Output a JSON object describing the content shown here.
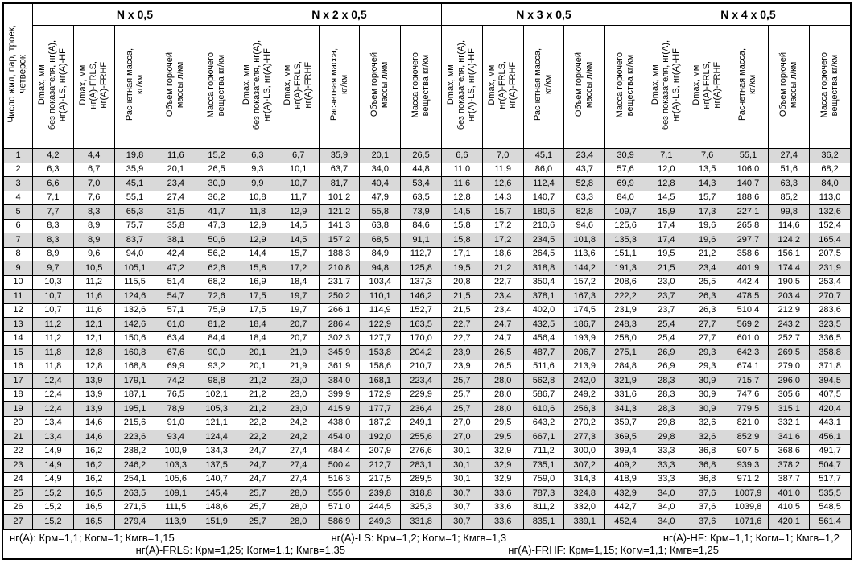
{
  "table": {
    "row_header": "Число жил, пар, троек,\nчетверок",
    "groups": [
      "N x 0,5",
      "N x 2 x 0,5",
      "N x 3 x 0,5",
      "N x 4 x 0,5"
    ],
    "columns": [
      "Dmax, мм\nбез показателя, нг(А),\nнг(А)-LS, нг(А)-HF",
      "Dmax, мм\nнг(А)-FRLS,\nнг(А)-FRHF",
      "Расчетная масса,\nкг/км",
      "Объем горючей\nмассы л/км",
      "Масса горючего\nвещества кг/км"
    ],
    "rows": [
      [
        "1",
        "4,2",
        "4,4",
        "19,8",
        "11,6",
        "15,2",
        "6,3",
        "6,7",
        "35,9",
        "20,1",
        "26,5",
        "6,6",
        "7,0",
        "45,1",
        "23,4",
        "30,9",
        "7,1",
        "7,6",
        "55,1",
        "27,4",
        "36,2"
      ],
      [
        "2",
        "6,3",
        "6,7",
        "35,9",
        "20,1",
        "26,5",
        "9,3",
        "10,1",
        "63,7",
        "34,0",
        "44,8",
        "11,0",
        "11,9",
        "86,0",
        "43,7",
        "57,6",
        "12,0",
        "13,5",
        "106,0",
        "51,6",
        "68,2"
      ],
      [
        "3",
        "6,6",
        "7,0",
        "45,1",
        "23,4",
        "30,9",
        "9,9",
        "10,7",
        "81,7",
        "40,4",
        "53,4",
        "11,6",
        "12,6",
        "112,4",
        "52,8",
        "69,9",
        "12,8",
        "14,3",
        "140,7",
        "63,3",
        "84,0"
      ],
      [
        "4",
        "7,1",
        "7,6",
        "55,1",
        "27,4",
        "36,2",
        "10,8",
        "11,7",
        "101,2",
        "47,9",
        "63,5",
        "12,8",
        "14,3",
        "140,7",
        "63,3",
        "84,0",
        "14,5",
        "15,7",
        "188,6",
        "85,2",
        "113,0"
      ],
      [
        "5",
        "7,7",
        "8,3",
        "65,3",
        "31,5",
        "41,7",
        "11,8",
        "12,9",
        "121,2",
        "55,8",
        "73,9",
        "14,5",
        "15,7",
        "180,6",
        "82,8",
        "109,7",
        "15,9",
        "17,3",
        "227,1",
        "99,8",
        "132,6"
      ],
      [
        "6",
        "8,3",
        "8,9",
        "75,7",
        "35,8",
        "47,3",
        "12,9",
        "14,5",
        "141,3",
        "63,8",
        "84,6",
        "15,8",
        "17,2",
        "210,6",
        "94,6",
        "125,6",
        "17,4",
        "19,6",
        "265,8",
        "114,6",
        "152,4"
      ],
      [
        "7",
        "8,3",
        "8,9",
        "83,7",
        "38,1",
        "50,6",
        "12,9",
        "14,5",
        "157,2",
        "68,5",
        "91,1",
        "15,8",
        "17,2",
        "234,5",
        "101,8",
        "135,3",
        "17,4",
        "19,6",
        "297,7",
        "124,2",
        "165,4"
      ],
      [
        "8",
        "8,9",
        "9,6",
        "94,0",
        "42,4",
        "56,2",
        "14,4",
        "15,7",
        "188,3",
        "84,9",
        "112,7",
        "17,1",
        "18,6",
        "264,5",
        "113,6",
        "151,1",
        "19,5",
        "21,2",
        "358,6",
        "156,1",
        "207,5"
      ],
      [
        "9",
        "9,7",
        "10,5",
        "105,1",
        "47,2",
        "62,6",
        "15,8",
        "17,2",
        "210,8",
        "94,8",
        "125,8",
        "19,5",
        "21,2",
        "318,8",
        "144,2",
        "191,3",
        "21,5",
        "23,4",
        "401,9",
        "174,4",
        "231,9"
      ],
      [
        "10",
        "10,3",
        "11,2",
        "115,5",
        "51,4",
        "68,2",
        "16,9",
        "18,4",
        "231,7",
        "103,4",
        "137,3",
        "20,8",
        "22,7",
        "350,4",
        "157,2",
        "208,6",
        "23,0",
        "25,5",
        "442,4",
        "190,5",
        "253,4"
      ],
      [
        "11",
        "10,7",
        "11,6",
        "124,6",
        "54,7",
        "72,6",
        "17,5",
        "19,7",
        "250,2",
        "110,1",
        "146,2",
        "21,5",
        "23,4",
        "378,1",
        "167,3",
        "222,2",
        "23,7",
        "26,3",
        "478,5",
        "203,4",
        "270,7"
      ],
      [
        "12",
        "10,7",
        "11,6",
        "132,6",
        "57,1",
        "75,9",
        "17,5",
        "19,7",
        "266,1",
        "114,9",
        "152,7",
        "21,5",
        "23,4",
        "402,0",
        "174,5",
        "231,9",
        "23,7",
        "26,3",
        "510,4",
        "212,9",
        "283,6"
      ],
      [
        "13",
        "11,2",
        "12,1",
        "142,6",
        "61,0",
        "81,2",
        "18,4",
        "20,7",
        "286,4",
        "122,9",
        "163,5",
        "22,7",
        "24,7",
        "432,5",
        "186,7",
        "248,3",
        "25,4",
        "27,7",
        "569,2",
        "243,2",
        "323,5"
      ],
      [
        "14",
        "11,2",
        "12,1",
        "150,6",
        "63,4",
        "84,4",
        "18,4",
        "20,7",
        "302,3",
        "127,7",
        "170,0",
        "22,7",
        "24,7",
        "456,4",
        "193,9",
        "258,0",
        "25,4",
        "27,7",
        "601,0",
        "252,7",
        "336,5"
      ],
      [
        "15",
        "11,8",
        "12,8",
        "160,8",
        "67,6",
        "90,0",
        "20,1",
        "21,9",
        "345,9",
        "153,8",
        "204,2",
        "23,9",
        "26,5",
        "487,7",
        "206,7",
        "275,1",
        "26,9",
        "29,3",
        "642,3",
        "269,5",
        "358,8"
      ],
      [
        "16",
        "11,8",
        "12,8",
        "168,8",
        "69,9",
        "93,2",
        "20,1",
        "21,9",
        "361,9",
        "158,6",
        "210,7",
        "23,9",
        "26,5",
        "511,6",
        "213,9",
        "284,8",
        "26,9",
        "29,3",
        "674,1",
        "279,0",
        "371,8"
      ],
      [
        "17",
        "12,4",
        "13,9",
        "179,1",
        "74,2",
        "98,8",
        "21,2",
        "23,0",
        "384,0",
        "168,1",
        "223,4",
        "25,7",
        "28,0",
        "562,8",
        "242,0",
        "321,9",
        "28,3",
        "30,9",
        "715,7",
        "296,0",
        "394,5"
      ],
      [
        "18",
        "12,4",
        "13,9",
        "187,1",
        "76,5",
        "102,1",
        "21,2",
        "23,0",
        "399,9",
        "172,9",
        "229,9",
        "25,7",
        "28,0",
        "586,7",
        "249,2",
        "331,6",
        "28,3",
        "30,9",
        "747,6",
        "305,6",
        "407,5"
      ],
      [
        "19",
        "12,4",
        "13,9",
        "195,1",
        "78,9",
        "105,3",
        "21,2",
        "23,0",
        "415,9",
        "177,7",
        "236,4",
        "25,7",
        "28,0",
        "610,6",
        "256,3",
        "341,3",
        "28,3",
        "30,9",
        "779,5",
        "315,1",
        "420,4"
      ],
      [
        "20",
        "13,4",
        "14,6",
        "215,6",
        "91,0",
        "121,1",
        "22,2",
        "24,2",
        "438,0",
        "187,2",
        "249,1",
        "27,0",
        "29,5",
        "643,2",
        "270,2",
        "359,7",
        "29,8",
        "32,6",
        "821,0",
        "332,1",
        "443,1"
      ],
      [
        "21",
        "13,4",
        "14,6",
        "223,6",
        "93,4",
        "124,4",
        "22,2",
        "24,2",
        "454,0",
        "192,0",
        "255,6",
        "27,0",
        "29,5",
        "667,1",
        "277,3",
        "369,5",
        "29,8",
        "32,6",
        "852,9",
        "341,6",
        "456,1"
      ],
      [
        "22",
        "14,9",
        "16,2",
        "238,2",
        "100,9",
        "134,3",
        "24,7",
        "27,4",
        "484,4",
        "207,9",
        "276,6",
        "30,1",
        "32,9",
        "711,2",
        "300,0",
        "399,4",
        "33,3",
        "36,8",
        "907,5",
        "368,6",
        "491,7"
      ],
      [
        "23",
        "14,9",
        "16,2",
        "246,2",
        "103,3",
        "137,5",
        "24,7",
        "27,4",
        "500,4",
        "212,7",
        "283,1",
        "30,1",
        "32,9",
        "735,1",
        "307,2",
        "409,2",
        "33,3",
        "36,8",
        "939,3",
        "378,2",
        "504,7"
      ],
      [
        "24",
        "14,9",
        "16,2",
        "254,1",
        "105,6",
        "140,7",
        "24,7",
        "27,4",
        "516,3",
        "217,5",
        "289,5",
        "30,1",
        "32,9",
        "759,0",
        "314,3",
        "418,9",
        "33,3",
        "36,8",
        "971,2",
        "387,7",
        "517,7"
      ],
      [
        "25",
        "15,2",
        "16,5",
        "263,5",
        "109,1",
        "145,4",
        "25,7",
        "28,0",
        "555,0",
        "239,8",
        "318,8",
        "30,7",
        "33,6",
        "787,3",
        "324,8",
        "432,9",
        "34,0",
        "37,6",
        "1007,9",
        "401,0",
        "535,5"
      ],
      [
        "26",
        "15,2",
        "16,5",
        "271,5",
        "111,5",
        "148,6",
        "25,7",
        "28,0",
        "571,0",
        "244,5",
        "325,3",
        "30,7",
        "33,6",
        "811,2",
        "332,0",
        "442,7",
        "34,0",
        "37,6",
        "1039,8",
        "410,5",
        "548,5"
      ],
      [
        "27",
        "15,2",
        "16,5",
        "279,4",
        "113,9",
        "151,9",
        "25,7",
        "28,0",
        "586,9",
        "249,3",
        "331,8",
        "30,7",
        "33,6",
        "835,1",
        "339,1",
        "452,4",
        "34,0",
        "37,6",
        "1071,6",
        "420,1",
        "561,4"
      ]
    ]
  },
  "footer": {
    "line1": [
      "нг(А): Крм=1,1;  Когм=1;  Кмгв=1,15",
      "нг(А)-LS: Крм=1,2;  Когм=1;  Кмгв=1,3",
      "нг(А)-HF: Крм=1,1;  Когм=1;  Кмгв=1,2"
    ],
    "line2": [
      "нг(А)-FRLS: Крм=1,25;  Когм=1,1;  Кмгв=1,35",
      "нг(А)-FRHF: Крм=1,15;  Когм=1,1;  Кмгв=1,25"
    ]
  },
  "colors": {
    "stripe": "#d9d9d9",
    "border": "#000000",
    "background": "#ffffff"
  }
}
